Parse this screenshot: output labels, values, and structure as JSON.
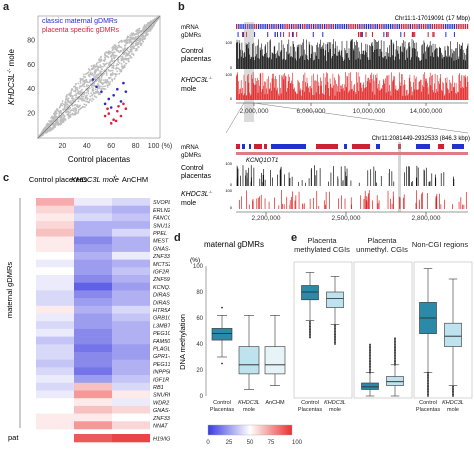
{
  "panel_a": {
    "label": "a",
    "legend": [
      "classic maternal gDMRs",
      "placenta specific gDMRs"
    ],
    "legend_colors": [
      "#2a2ad0",
      "#e0203a"
    ],
    "ylabel_main": "KHDC3L",
    "ylabel_sup": "-/-",
    "ylabel_end": " mole",
    "xlabel": "Control placentas",
    "ticks": [
      "20",
      "40",
      "60",
      "80",
      "100 (%)"
    ],
    "yticks": [
      "20",
      "40",
      "60",
      "80",
      "100 (%)"
    ],
    "chart_data": {
      "type": "scatter",
      "xlim": [
        0,
        100
      ],
      "ylim": [
        0,
        100
      ],
      "series": [
        {
          "name": "classic maternal gDMRs",
          "points": [
            [
              55,
              28
            ],
            [
              58,
              32
            ],
            [
              62,
              35
            ],
            [
              48,
              42
            ],
            [
              65,
              40
            ],
            [
              70,
              45
            ],
            [
              52,
              38
            ],
            [
              60,
              25
            ],
            [
              68,
              30
            ],
            [
              45,
              48
            ],
            [
              72,
              38
            ]
          ]
        },
        {
          "name": "placenta specific gDMRs",
          "points": [
            [
              58,
              20
            ],
            [
              62,
              15
            ],
            [
              65,
              22
            ],
            [
              55,
              18
            ],
            [
              70,
              28
            ],
            [
              60,
              12
            ],
            [
              68,
              18
            ],
            [
              66,
              26
            ],
            [
              72,
              24
            ],
            [
              64,
              14
            ],
            [
              57,
              24
            ]
          ]
        }
      ]
    }
  },
  "panel_b": {
    "label": "b",
    "top_coord": "Chr11:1-17019091 (17 Mbp)",
    "zoom_coord": "Chr11:2081449-2932533 (846.3 kbp)",
    "row_labels": [
      "mRNA",
      "gDMRs"
    ],
    "track_control": "Control",
    "track_control2": "placentas",
    "track_khdc": "KHDC3L",
    "track_khdc_sup": "-/-",
    "track_khdc2": "mole",
    "scale_top": "100",
    "scale_bottom": "0",
    "top_axis": [
      "2,000,000",
      "6,000,000",
      "10,000,000",
      "14,000,000"
    ],
    "zoom_axis": [
      "2,200,000",
      "2,500,000",
      "2,800,000"
    ],
    "gene": "KCNQ1OT1"
  },
  "panel_c": {
    "label": "c",
    "col_headers": [
      "Control placentas",
      "KHDC3L mole",
      "AnCHM"
    ],
    "col_sup": "-/-",
    "side_label": "maternal gDMRs",
    "pat_label": "pat",
    "genes": [
      "SVOPL",
      "ERLN2",
      "FANCC",
      "SNU13",
      "PPEL",
      "MEST",
      "GNAS-XL",
      "ZNF331-1",
      "MCTS2P",
      "IGF2R",
      "ZNF597",
      "KCNQ1OT1",
      "DIRAS3:ex2",
      "DIRAS3:TSS",
      "HTR5A",
      "GRB10",
      "L3MBTL1",
      "PEG10",
      "FAM50B",
      "PLAGL1",
      "GPR1-AS",
      "PEG13",
      "INPP5F",
      "IGF1R",
      "RB1",
      "SNURF",
      "WDR27",
      "GNAS-AS1",
      "ZNF331-2",
      "NNAT",
      "H19/IGF2"
    ],
    "heat_values": [
      [
        70,
        45,
        40
      ],
      [
        60,
        35,
        30
      ],
      [
        55,
        40,
        35
      ],
      [
        60,
        30,
        30
      ],
      [
        65,
        30,
        40
      ],
      [
        55,
        20,
        30
      ],
      [
        55,
        25,
        30
      ],
      [
        50,
        30,
        45
      ],
      [
        45,
        25,
        30
      ],
      [
        50,
        25,
        35
      ],
      [
        45,
        20,
        30
      ],
      [
        45,
        10,
        25
      ],
      [
        40,
        20,
        30
      ],
      [
        40,
        25,
        30
      ],
      [
        55,
        30,
        40
      ],
      [
        45,
        25,
        35
      ],
      [
        40,
        25,
        30
      ],
      [
        45,
        20,
        30
      ],
      [
        35,
        20,
        30
      ],
      [
        40,
        15,
        25
      ],
      [
        40,
        20,
        25
      ],
      [
        35,
        20,
        30
      ],
      [
        40,
        15,
        30
      ],
      [
        45,
        25,
        35
      ],
      [
        40,
        65,
        40
      ],
      [
        45,
        75,
        55
      ],
      [
        50,
        55,
        45
      ],
      [
        50,
        65,
        60
      ],
      [
        55,
        55,
        50
      ],
      [
        55,
        75,
        60
      ],
      [
        50,
        90,
        95
      ]
    ],
    "scale_ticks": [
      "0",
      "25",
      "50",
      "75",
      "100 (%)"
    ]
  },
  "panel_d": {
    "label": "d",
    "title": "maternal gDMRs",
    "ylabel": "DNA methylation",
    "yunit": "(%)",
    "yticks": [
      "0",
      "20",
      "40",
      "60",
      "80",
      "100"
    ],
    "xlabels": [
      "Control Placentas",
      "KHDC3L mole",
      "AnCHM"
    ],
    "x_sup": "-/-",
    "chart_data": {
      "type": "box",
      "ylim": [
        0,
        100
      ],
      "boxes": [
        {
          "name": "Control Placentas",
          "q1": 43,
          "median": 48,
          "q3": 52,
          "min": 30,
          "max": 62
        },
        {
          "name": "KHDC3L mole",
          "q1": 17,
          "median": 24,
          "q3": 38,
          "min": 5,
          "max": 62
        },
        {
          "name": "AnCHM",
          "q1": 17,
          "median": 24,
          "q3": 38,
          "min": 8,
          "max": 62
        }
      ]
    }
  },
  "panel_e": {
    "label": "e",
    "groups": [
      "Placenta methylated CGIs",
      "Placenta unmethyl. CGIs",
      "Non-CGI regions"
    ],
    "xlabels": [
      "Control Placentas",
      "KHDC3L mole"
    ],
    "x_sup": "-/-",
    "chart_data": {
      "type": "box",
      "ylim": [
        0,
        100
      ],
      "boxes": [
        {
          "group": "Placenta methylated CGIs",
          "name": "Control Placentas",
          "q1": 74,
          "median": 80,
          "q3": 85,
          "min": 58,
          "max": 95
        },
        {
          "group": "Placenta methylated CGIs",
          "name": "KHDC3L mole",
          "q1": 68,
          "median": 75,
          "q3": 80,
          "min": 55,
          "max": 92
        },
        {
          "group": "Placenta unmethyl. CGIs",
          "name": "Control Placentas",
          "q1": 5,
          "median": 7,
          "q3": 10,
          "min": 0,
          "max": 18
        },
        {
          "group": "Placenta unmethyl. CGIs",
          "name": "KHDC3L mole",
          "q1": 8,
          "median": 11,
          "q3": 15,
          "min": 0,
          "max": 24
        },
        {
          "group": "Non-CGI regions",
          "name": "Control Placentas",
          "q1": 48,
          "median": 60,
          "q3": 72,
          "min": 18,
          "max": 98
        },
        {
          "group": "Non-CGI regions",
          "name": "KHDC3L mole",
          "q1": 38,
          "median": 46,
          "q3": 56,
          "min": 8,
          "max": 90
        }
      ]
    }
  }
}
